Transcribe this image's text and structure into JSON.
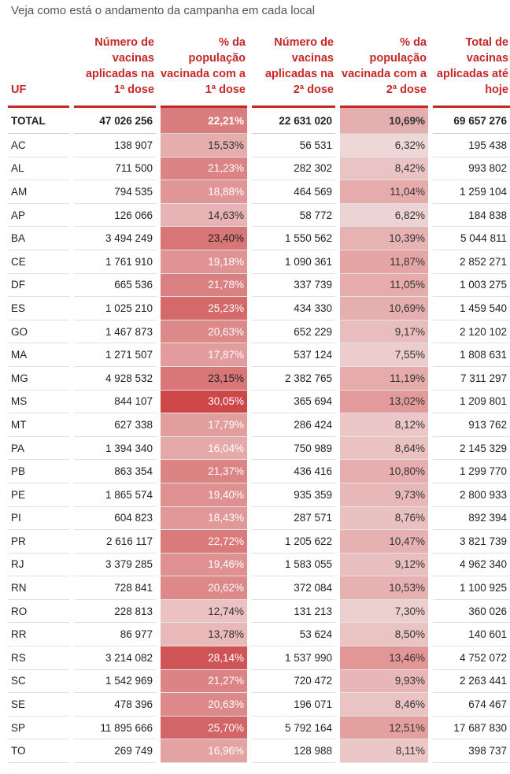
{
  "subtitle": "Veja como está o andamento da campanha em cada local",
  "headers": {
    "uf": "UF",
    "dose1": "Número de vacinas aplicadas na 1ª dose",
    "pct1": "% da população vacinada com a 1ª dose",
    "dose2": "Número de vacinas aplicadas na 2ª dose",
    "pct2": "% da população vacinada com a 2ª dose",
    "total": "Total de vacinas aplicadas até hoje"
  },
  "colors": {
    "accent": "#c62828"
  },
  "rows": [
    {
      "uf": "TOTAL",
      "dose1": "47 026 256",
      "pct1": "22,21%",
      "dose2": "22 631 020",
      "pct2": "10,69%",
      "total": "69 657 276"
    },
    {
      "uf": "AC",
      "dose1": "138 907",
      "pct1": "15,53%",
      "dose2": "56 531",
      "pct2": "6,32%",
      "total": "195 438"
    },
    {
      "uf": "AL",
      "dose1": "711 500",
      "pct1": "21,23%",
      "dose2": "282 302",
      "pct2": "8,42%",
      "total": "993 802"
    },
    {
      "uf": "AM",
      "dose1": "794 535",
      "pct1": "18,88%",
      "dose2": "464 569",
      "pct2": "11,04%",
      "total": "1 259 104"
    },
    {
      "uf": "AP",
      "dose1": "126 066",
      "pct1": "14,63%",
      "dose2": "58 772",
      "pct2": "6,82%",
      "total": "184 838"
    },
    {
      "uf": "BA",
      "dose1": "3 494 249",
      "pct1": "23,40%",
      "dose2": "1 550 562",
      "pct2": "10,39%",
      "total": "5 044 811"
    },
    {
      "uf": "CE",
      "dose1": "1 761 910",
      "pct1": "19,18%",
      "dose2": "1 090 361",
      "pct2": "11,87%",
      "total": "2 852 271"
    },
    {
      "uf": "DF",
      "dose1": "665 536",
      "pct1": "21,78%",
      "dose2": "337 739",
      "pct2": "11,05%",
      "total": "1 003 275"
    },
    {
      "uf": "ES",
      "dose1": "1 025 210",
      "pct1": "25,23%",
      "dose2": "434 330",
      "pct2": "10,69%",
      "total": "1 459 540"
    },
    {
      "uf": "GO",
      "dose1": "1 467 873",
      "pct1": "20,63%",
      "dose2": "652 229",
      "pct2": "9,17%",
      "total": "2 120 102"
    },
    {
      "uf": "MA",
      "dose1": "1 271 507",
      "pct1": "17,87%",
      "dose2": "537 124",
      "pct2": "7,55%",
      "total": "1 808 631"
    },
    {
      "uf": "MG",
      "dose1": "4 928 532",
      "pct1": "23,15%",
      "dose2": "2 382 765",
      "pct2": "11,19%",
      "total": "7 311 297"
    },
    {
      "uf": "MS",
      "dose1": "844 107",
      "pct1": "30,05%",
      "dose2": "365 694",
      "pct2": "13,02%",
      "total": "1 209 801"
    },
    {
      "uf": "MT",
      "dose1": "627 338",
      "pct1": "17,79%",
      "dose2": "286 424",
      "pct2": "8,12%",
      "total": "913 762"
    },
    {
      "uf": "PA",
      "dose1": "1 394 340",
      "pct1": "16,04%",
      "dose2": "750 989",
      "pct2": "8,64%",
      "total": "2 145 329"
    },
    {
      "uf": "PB",
      "dose1": "863 354",
      "pct1": "21,37%",
      "dose2": "436 416",
      "pct2": "10,80%",
      "total": "1 299 770"
    },
    {
      "uf": "PE",
      "dose1": "1 865 574",
      "pct1": "19,40%",
      "dose2": "935 359",
      "pct2": "9,73%",
      "total": "2 800 933"
    },
    {
      "uf": "PI",
      "dose1": "604 823",
      "pct1": "18,43%",
      "dose2": "287 571",
      "pct2": "8,76%",
      "total": "892 394"
    },
    {
      "uf": "PR",
      "dose1": "2 616 117",
      "pct1": "22,72%",
      "dose2": "1 205 622",
      "pct2": "10,47%",
      "total": "3 821 739"
    },
    {
      "uf": "RJ",
      "dose1": "3 379 285",
      "pct1": "19,46%",
      "dose2": "1 583 055",
      "pct2": "9,12%",
      "total": "4 962 340"
    },
    {
      "uf": "RN",
      "dose1": "728 841",
      "pct1": "20,62%",
      "dose2": "372 084",
      "pct2": "10,53%",
      "total": "1 100 925"
    },
    {
      "uf": "RO",
      "dose1": "228 813",
      "pct1": "12,74%",
      "dose2": "131 213",
      "pct2": "7,30%",
      "total": "360 026"
    },
    {
      "uf": "RR",
      "dose1": "86 977",
      "pct1": "13,78%",
      "dose2": "53 624",
      "pct2": "8,50%",
      "total": "140 601"
    },
    {
      "uf": "RS",
      "dose1": "3 214 082",
      "pct1": "28,14%",
      "dose2": "1 537 990",
      "pct2": "13,46%",
      "total": "4 752 072"
    },
    {
      "uf": "SC",
      "dose1": "1 542 969",
      "pct1": "21,27%",
      "dose2": "720 472",
      "pct2": "9,93%",
      "total": "2 263 441"
    },
    {
      "uf": "SE",
      "dose1": "478 396",
      "pct1": "20,63%",
      "dose2": "196 071",
      "pct2": "8,46%",
      "total": "674 467"
    },
    {
      "uf": "SP",
      "dose1": "11 895 666",
      "pct1": "25,70%",
      "dose2": "5 792 164",
      "pct2": "12,51%",
      "total": "17 687 830"
    },
    {
      "uf": "TO",
      "dose1": "269 749",
      "pct1": "16,96%",
      "dose2": "128 988",
      "pct2": "8,11%",
      "total": "398 737"
    }
  ]
}
